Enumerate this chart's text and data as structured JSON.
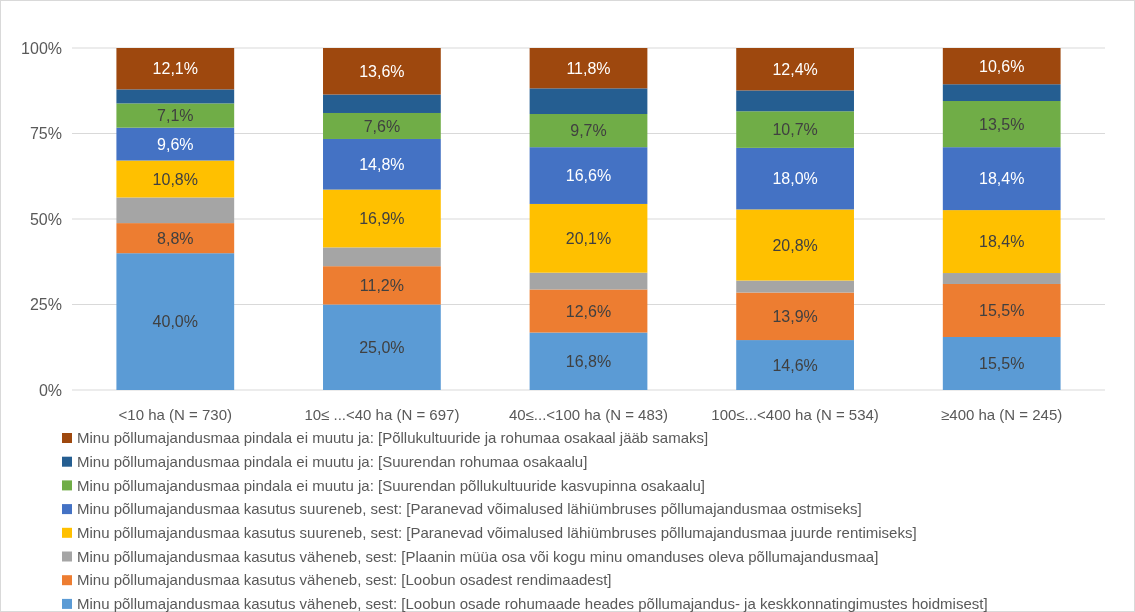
{
  "chart_data": {
    "type": "bar",
    "stacked": true,
    "categories": [
      "<10 ha (N = 730)",
      "10≤ ...<40 ha (N = 697)",
      "40≤...<100 ha (N = 483)",
      "100≤...<400 ha (N = 534)",
      "≥400 ha (N = 245)"
    ],
    "ylim": [
      0,
      100
    ],
    "yticks": [
      {
        "value": 0,
        "label": "0%"
      },
      {
        "value": 25,
        "label": "25%"
      },
      {
        "value": 50,
        "label": "50%"
      },
      {
        "value": 75,
        "label": "75%"
      },
      {
        "value": 100,
        "label": "100%"
      }
    ],
    "grid": "y",
    "legend": "bottom",
    "series": [
      {
        "name": "Minu põllumajandusmaa kasutus väheneb, sest: [Loobun osade rohumaade heades põllumajandus- ja keskkonnatingimustes hoidmisest]",
        "color": "#5b9bd5",
        "values": [
          40.0,
          25.0,
          16.8,
          14.6,
          15.5
        ],
        "value_labels": [
          "40,0%",
          "25,0%",
          "16,8%",
          "14,6%",
          "15,5%"
        ]
      },
      {
        "name": "Minu põllumajandusmaa kasutus väheneb, sest: [Loobun osadest rendimaadest]",
        "color": "#ed7d31",
        "values": [
          8.8,
          11.2,
          12.6,
          13.9,
          15.5
        ],
        "value_labels": [
          "8,8%",
          "11,2%",
          "12,6%",
          "13,9%",
          "15,5%"
        ]
      },
      {
        "name": "Minu põllumajandusmaa kasutus väheneb, sest: [Plaanin müüa osa või kogu minu omanduses oleva põllumajandusmaa]",
        "color": "#a5a5a5",
        "values": [
          7.5,
          5.5,
          4.9,
          3.5,
          3.2
        ],
        "value_labels": [
          null,
          null,
          null,
          null,
          null
        ]
      },
      {
        "name": "Minu põllumajandusmaa kasutus suureneb, sest:  [Paranevad võimalused lähiümbruses põllumajandusmaa juurde rentimiseks]",
        "color": "#ffc000",
        "values": [
          10.8,
          16.9,
          20.1,
          20.8,
          18.4
        ],
        "value_labels": [
          "10,8%",
          "16,9%",
          "20,1%",
          "20,8%",
          "18,4%"
        ]
      },
      {
        "name": "Minu põllumajandusmaa kasutus suureneb, sest:  [Paranevad võimalused lähiümbruses põllumajandusmaa ostmiseks]",
        "color": "#4472c4",
        "values": [
          9.6,
          14.8,
          16.6,
          18.0,
          18.4
        ],
        "value_labels": [
          "9,6%",
          "14,8%",
          "16,6%",
          "18,0%",
          "18,4%"
        ]
      },
      {
        "name": "Minu põllumajandusmaa pindala ei muutu ja: [Suurendan põllukultuuride kasvupinna osakaalu]",
        "color": "#70ad47",
        "values": [
          7.1,
          7.6,
          9.7,
          10.7,
          13.5
        ],
        "value_labels": [
          "7,1%",
          "7,6%",
          "9,7%",
          "10,7%",
          "13,5%"
        ]
      },
      {
        "name": "Minu põllumajandusmaa pindala ei muutu ja: [Suurendan rohumaa osakaalu]",
        "color": "#255e91",
        "values": [
          4.1,
          5.4,
          7.5,
          6.1,
          4.9
        ],
        "value_labels": [
          null,
          null,
          null,
          null,
          null
        ]
      },
      {
        "name": "Minu põllumajandusmaa pindala ei muutu ja: [Põllukultuuride ja rohumaa osakaal jääb samaks]",
        "color": "#9e480e",
        "values": [
          12.1,
          13.6,
          11.8,
          12.4,
          10.6
        ],
        "value_labels": [
          "12,1%",
          "13,6%",
          "11,8%",
          "12,4%",
          "10,6%"
        ]
      }
    ]
  }
}
